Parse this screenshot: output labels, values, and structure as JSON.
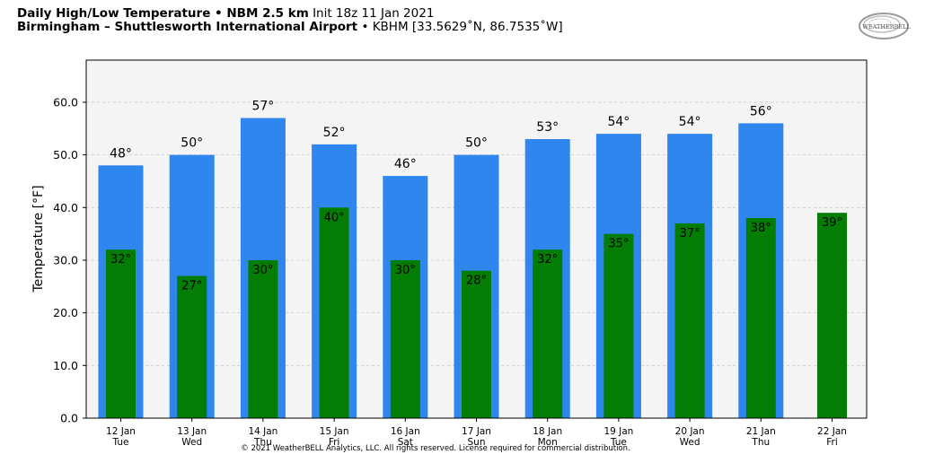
{
  "header": {
    "title_bold": "Daily High/Low Temperature • NBM 2.5 km",
    "init": "Init 18z 11 Jan 2021",
    "location_bold": "Birmingham – Shuttlesworth International Airport",
    "station": "• KBHM [33.5629˚N, 86.7535˚W]"
  },
  "logo": {
    "text": "WEATHERBELL",
    "icon": "weatherbell-swirl-logo"
  },
  "credit": "© 2021 WeatherBELL Analytics, LLC. All rights reserved. License required for commercial distribution.",
  "colors": {
    "high": "#2E86EE",
    "low": "#037D03",
    "plot_bg": "#F4F4F4",
    "grid": "#CCCCCC"
  },
  "chart_data": {
    "type": "bar",
    "title": "Daily High/Low Temperature • NBM 2.5 km",
    "categories": [
      "12 Jan",
      "13 Jan",
      "14 Jan",
      "15 Jan",
      "16 Jan",
      "17 Jan",
      "18 Jan",
      "19 Jan",
      "20 Jan",
      "21 Jan",
      "22 Jan"
    ],
    "weekdays": [
      "Tue",
      "Wed",
      "Thu",
      "Fri",
      "Sat",
      "Sun",
      "Mon",
      "Tue",
      "Wed",
      "Thu",
      "Fri"
    ],
    "series": [
      {
        "name": "High",
        "values": [
          48,
          50,
          57,
          52,
          46,
          50,
          53,
          54,
          54,
          56,
          null
        ],
        "labels": [
          "48°",
          "50°",
          "57°",
          "52°",
          "46°",
          "50°",
          "53°",
          "54°",
          "54°",
          "56°",
          ""
        ]
      },
      {
        "name": "Low",
        "values": [
          32,
          27,
          30,
          40,
          30,
          28,
          32,
          35,
          37,
          38,
          39
        ],
        "labels": [
          "32°",
          "27°",
          "30°",
          "40°",
          "30°",
          "28°",
          "32°",
          "35°",
          "37°",
          "38°",
          "39°"
        ]
      }
    ],
    "xlabel": "",
    "ylabel": "Temperature [°F]",
    "ylim": [
      0,
      68
    ],
    "yticks": [
      0,
      10,
      20,
      30,
      40,
      50,
      60
    ],
    "ytick_labels": [
      "0.0",
      "10.0",
      "20.0",
      "30.0",
      "40.0",
      "50.0",
      "60.0"
    ],
    "grid": true,
    "legend": "none"
  }
}
